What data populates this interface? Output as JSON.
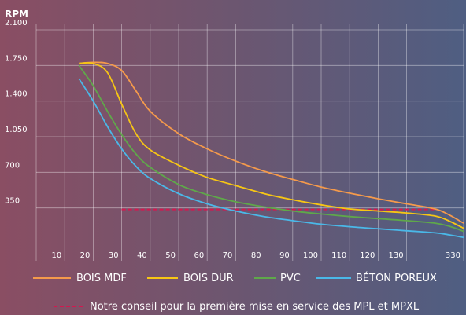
{
  "chart_data": {
    "type": "line",
    "ylabel": "RPM",
    "yticks": [
      350,
      700,
      1050,
      1400,
      1750,
      2100
    ],
    "ytick_labels": [
      "350",
      "700",
      "1.050",
      "1.400",
      "1.750",
      "2.100"
    ],
    "ylim": [
      0,
      2100
    ],
    "x_tick_labels": [
      "10",
      "20",
      "30",
      "40",
      "50",
      "60",
      "70",
      "80",
      "90",
      "100",
      "110",
      "120",
      "130",
      "330"
    ],
    "x_tick_positions": [
      1,
      2,
      3,
      4,
      5,
      6,
      7,
      8,
      9,
      10,
      11,
      12,
      13,
      15
    ],
    "xlim": [
      0,
      15
    ],
    "grid": true,
    "series": [
      {
        "name": "BOIS MDF",
        "color": "#f59a4b",
        "points": [
          [
            1.5,
            1770
          ],
          [
            2.0,
            1780
          ],
          [
            2.5,
            1770
          ],
          [
            3.0,
            1700
          ],
          [
            3.5,
            1500
          ],
          [
            4.0,
            1300
          ],
          [
            5.0,
            1080
          ],
          [
            6.0,
            930
          ],
          [
            7.0,
            810
          ],
          [
            8.0,
            710
          ],
          [
            9.0,
            630
          ],
          [
            10.0,
            555
          ],
          [
            11.0,
            495
          ],
          [
            12.0,
            440
          ],
          [
            13.0,
            390
          ],
          [
            14.0,
            340
          ],
          [
            14.5,
            280
          ],
          [
            15.0,
            200
          ]
        ]
      },
      {
        "name": "BOIS DUR",
        "color": "#f7c614",
        "points": [
          [
            1.5,
            1770
          ],
          [
            2.0,
            1770
          ],
          [
            2.5,
            1680
          ],
          [
            3.0,
            1370
          ],
          [
            3.5,
            1080
          ],
          [
            4.0,
            920
          ],
          [
            5.0,
            770
          ],
          [
            6.0,
            650
          ],
          [
            7.0,
            570
          ],
          [
            8.0,
            490
          ],
          [
            9.0,
            430
          ],
          [
            10.0,
            380
          ],
          [
            11.0,
            340
          ],
          [
            12.0,
            320
          ],
          [
            13.0,
            300
          ],
          [
            14.0,
            270
          ],
          [
            14.5,
            220
          ],
          [
            15.0,
            150
          ]
        ]
      },
      {
        "name": "PVC",
        "color": "#5fa84a",
        "points": [
          [
            1.5,
            1750
          ],
          [
            2.0,
            1550
          ],
          [
            2.5,
            1300
          ],
          [
            3.0,
            1070
          ],
          [
            3.5,
            880
          ],
          [
            4.0,
            750
          ],
          [
            5.0,
            580
          ],
          [
            6.0,
            480
          ],
          [
            7.0,
            410
          ],
          [
            8.0,
            360
          ],
          [
            9.0,
            320
          ],
          [
            10.0,
            290
          ],
          [
            11.0,
            265
          ],
          [
            12.0,
            245
          ],
          [
            13.0,
            225
          ],
          [
            14.0,
            200
          ],
          [
            14.5,
            170
          ],
          [
            15.0,
            120
          ]
        ]
      },
      {
        "name": "BÉTON POREUX",
        "color": "#4ab8e8",
        "points": [
          [
            1.5,
            1620
          ],
          [
            2.0,
            1400
          ],
          [
            2.5,
            1150
          ],
          [
            3.0,
            930
          ],
          [
            3.5,
            760
          ],
          [
            4.0,
            640
          ],
          [
            5.0,
            490
          ],
          [
            6.0,
            390
          ],
          [
            7.0,
            320
          ],
          [
            8.0,
            265
          ],
          [
            9.0,
            225
          ],
          [
            10.0,
            190
          ],
          [
            11.0,
            165
          ],
          [
            12.0,
            145
          ],
          [
            13.0,
            125
          ],
          [
            14.0,
            105
          ],
          [
            14.5,
            85
          ],
          [
            15.0,
            60
          ]
        ]
      }
    ],
    "reference_line": {
      "label": "Notre conseil pour la première mise en service des MPL et MPXL",
      "color": "#d3184f",
      "y": 335,
      "x_range": [
        3.0,
        14.0
      ]
    }
  }
}
